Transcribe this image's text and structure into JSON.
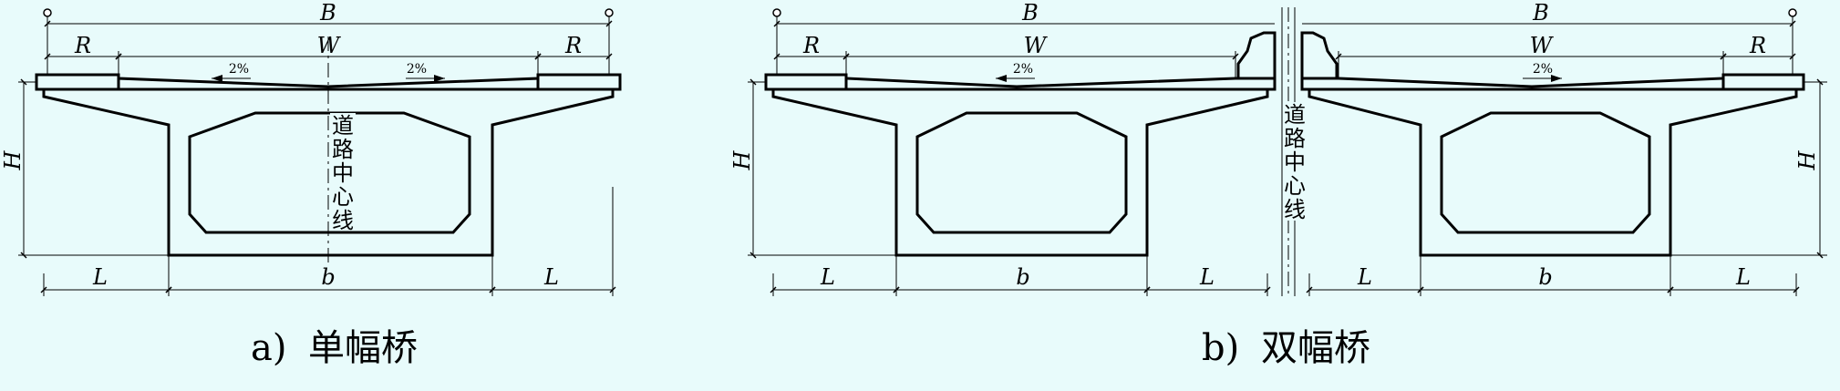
{
  "colors": {
    "background": "#e8fbfb",
    "line": "#000000"
  },
  "dimensions": {
    "overall_width": "B",
    "carriageway_width": "W",
    "curb_width": "R",
    "height": "H",
    "cantilever_length": "L",
    "bottom_width": "b"
  },
  "slope_label": "2%",
  "centerline_label": [
    "道",
    "路",
    "中",
    "心",
    "线"
  ],
  "figures": {
    "a": {
      "caption_prefix": "a)",
      "caption_text": "单幅桥"
    },
    "b": {
      "caption_prefix": "b)",
      "caption_text": "双幅桥"
    }
  }
}
